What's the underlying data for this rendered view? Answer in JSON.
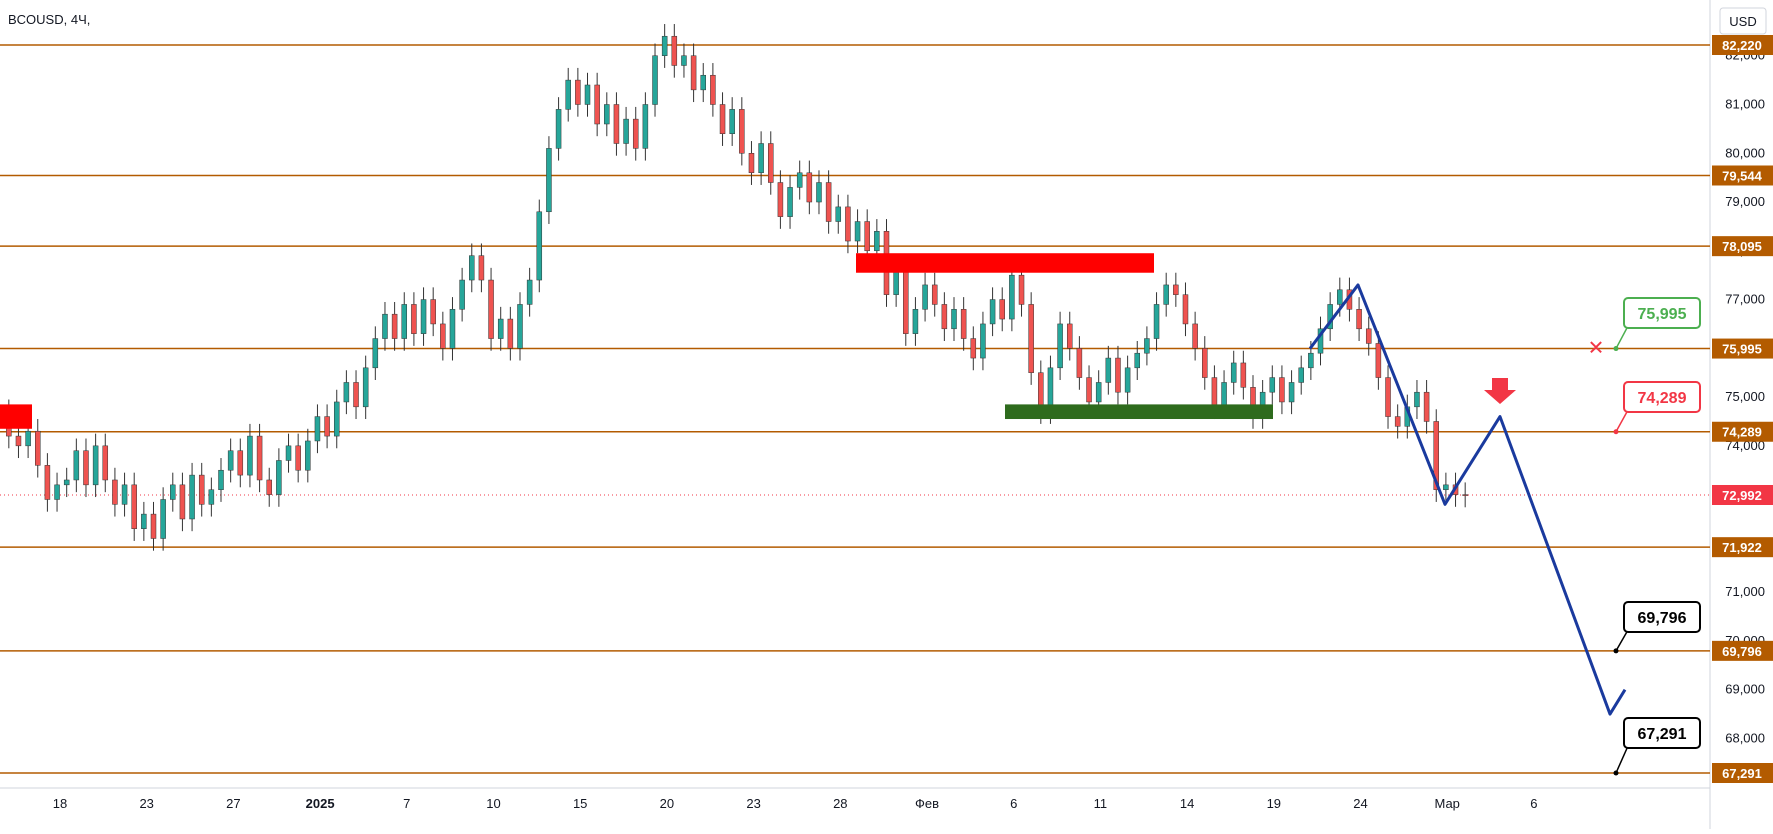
{
  "chart_data": {
    "type": "candlestick",
    "symbol": "BCOUSD",
    "timeframe": "4Ч",
    "currency": "USD",
    "ylim": [
      67000,
      82500
    ],
    "y_ticks": [
      68000,
      69000,
      70000,
      71000,
      72000,
      73000,
      74000,
      75000,
      76000,
      77000,
      78000,
      79000,
      80000,
      81000,
      82000
    ],
    "x_ticks": [
      {
        "label": "18",
        "bold": false
      },
      {
        "label": "23",
        "bold": false
      },
      {
        "label": "27",
        "bold": false
      },
      {
        "label": "2025",
        "bold": true
      },
      {
        "label": "7",
        "bold": false
      },
      {
        "label": "10",
        "bold": false
      },
      {
        "label": "15",
        "bold": false
      },
      {
        "label": "20",
        "bold": false
      },
      {
        "label": "23",
        "bold": false
      },
      {
        "label": "28",
        "bold": false
      },
      {
        "label": "Фев",
        "bold": false
      },
      {
        "label": "6",
        "bold": false
      },
      {
        "label": "11",
        "bold": false
      },
      {
        "label": "14",
        "bold": false
      },
      {
        "label": "19",
        "bold": false
      },
      {
        "label": "24",
        "bold": false
      },
      {
        "label": "Мар",
        "bold": false
      },
      {
        "label": "6",
        "bold": false
      }
    ],
    "levels": [
      {
        "value": 82220,
        "label": "82,220"
      },
      {
        "value": 79544,
        "label": "79,544"
      },
      {
        "value": 78095,
        "label": "78,095"
      },
      {
        "value": 75995,
        "label": "75,995"
      },
      {
        "value": 74289,
        "label": "74,289"
      },
      {
        "value": 71922,
        "label": "71,922"
      },
      {
        "value": 69796,
        "label": "69,796"
      },
      {
        "value": 67291,
        "label": "67,291"
      }
    ],
    "last_price": {
      "value": 72992,
      "label": "72,992"
    },
    "callouts": [
      {
        "label": "75,995",
        "value": 75995,
        "color": "#4caf50",
        "cross": true
      },
      {
        "label": "74,289",
        "value": 74289,
        "color": "#f23645"
      },
      {
        "label": "69,796",
        "value": 69796,
        "color": "#000000"
      },
      {
        "label": "67,291",
        "value": 67291,
        "color": "#000000"
      }
    ],
    "zones": [
      {
        "kind": "resistance",
        "color": "#ff0000",
        "from": 77550,
        "to": 77950
      },
      {
        "kind": "support",
        "color": "#2e6b1d",
        "from": 74550,
        "to": 74850
      },
      {
        "kind": "resistance",
        "color": "#ff0000",
        "from": 74350,
        "to": 74850
      }
    ],
    "forecast_path": [
      {
        "i": 0,
        "v": 75995
      },
      {
        "i": 1,
        "v": 77300
      },
      {
        "i": 2,
        "v": 72800
      },
      {
        "i": 3,
        "v": 74600
      },
      {
        "i": 4,
        "v": 68500
      },
      {
        "i": 5,
        "v": 69000
      }
    ],
    "candles": [
      [
        74.7,
        74.2
      ],
      [
        74.2,
        74.0
      ],
      [
        74.0,
        74.3
      ],
      [
        74.3,
        73.6
      ],
      [
        73.6,
        72.9
      ],
      [
        72.9,
        73.2
      ],
      [
        73.2,
        73.3
      ],
      [
        73.3,
        73.9
      ],
      [
        73.9,
        73.2
      ],
      [
        73.2,
        74.0
      ],
      [
        74.0,
        73.3
      ],
      [
        73.3,
        72.8
      ],
      [
        72.8,
        73.2
      ],
      [
        73.2,
        72.3
      ],
      [
        72.3,
        72.6
      ],
      [
        72.6,
        72.1
      ],
      [
        72.1,
        72.9
      ],
      [
        72.9,
        73.2
      ],
      [
        73.2,
        72.5
      ],
      [
        72.5,
        73.4
      ],
      [
        73.4,
        72.8
      ],
      [
        72.8,
        73.1
      ],
      [
        73.1,
        73.5
      ],
      [
        73.5,
        73.9
      ],
      [
        73.9,
        73.4
      ],
      [
        73.4,
        74.2
      ],
      [
        74.2,
        73.3
      ],
      [
        73.3,
        73.0
      ],
      [
        73.0,
        73.7
      ],
      [
        73.7,
        74.0
      ],
      [
        74.0,
        73.5
      ],
      [
        73.5,
        74.1
      ],
      [
        74.1,
        74.6
      ],
      [
        74.6,
        74.2
      ],
      [
        74.2,
        74.9
      ],
      [
        74.9,
        75.3
      ],
      [
        75.3,
        74.8
      ],
      [
        74.8,
        75.6
      ],
      [
        75.6,
        76.2
      ],
      [
        76.2,
        76.7
      ],
      [
        76.7,
        76.2
      ],
      [
        76.2,
        76.9
      ],
      [
        76.9,
        76.3
      ],
      [
        76.3,
        77.0
      ],
      [
        77.0,
        76.5
      ],
      [
        76.5,
        76.0
      ],
      [
        76.0,
        76.8
      ],
      [
        76.8,
        77.4
      ],
      [
        77.4,
        77.9
      ],
      [
        77.9,
        77.4
      ],
      [
        77.4,
        76.2
      ],
      [
        76.2,
        76.6
      ],
      [
        76.6,
        76.0
      ],
      [
        76.0,
        76.9
      ],
      [
        76.9,
        77.4
      ],
      [
        77.4,
        78.8
      ],
      [
        78.8,
        80.1
      ],
      [
        80.1,
        80.9
      ],
      [
        80.9,
        81.5
      ],
      [
        81.5,
        81.0
      ],
      [
        81.0,
        81.4
      ],
      [
        81.4,
        80.6
      ],
      [
        80.6,
        81.0
      ],
      [
        81.0,
        80.2
      ],
      [
        80.2,
        80.7
      ],
      [
        80.7,
        80.1
      ],
      [
        80.1,
        81.0
      ],
      [
        81.0,
        82.0
      ],
      [
        82.0,
        82.4
      ],
      [
        82.4,
        81.8
      ],
      [
        81.8,
        82.0
      ],
      [
        82.0,
        81.3
      ],
      [
        81.3,
        81.6
      ],
      [
        81.6,
        81.0
      ],
      [
        81.0,
        80.4
      ],
      [
        80.4,
        80.9
      ],
      [
        80.9,
        80.0
      ],
      [
        80.0,
        79.6
      ],
      [
        79.6,
        80.2
      ],
      [
        80.2,
        79.4
      ],
      [
        79.4,
        78.7
      ],
      [
        78.7,
        79.3
      ],
      [
        79.3,
        79.6
      ],
      [
        79.6,
        79.0
      ],
      [
        79.0,
        79.4
      ],
      [
        79.4,
        78.6
      ],
      [
        78.6,
        78.9
      ],
      [
        78.9,
        78.2
      ],
      [
        78.2,
        78.6
      ],
      [
        78.6,
        78.0
      ],
      [
        78.0,
        78.4
      ],
      [
        78.4,
        77.1
      ],
      [
        77.1,
        77.6
      ],
      [
        77.6,
        76.3
      ],
      [
        76.3,
        76.8
      ],
      [
        76.8,
        77.3
      ],
      [
        77.3,
        76.9
      ],
      [
        76.9,
        76.4
      ],
      [
        76.4,
        76.8
      ],
      [
        76.8,
        76.2
      ],
      [
        76.2,
        75.8
      ],
      [
        75.8,
        76.5
      ],
      [
        76.5,
        77.0
      ],
      [
        77.0,
        76.6
      ],
      [
        76.6,
        77.5
      ],
      [
        77.5,
        76.9
      ],
      [
        76.9,
        75.5
      ],
      [
        75.5,
        74.7
      ],
      [
        74.7,
        75.6
      ],
      [
        75.6,
        76.5
      ],
      [
        76.5,
        76.0
      ],
      [
        76.0,
        75.4
      ],
      [
        75.4,
        74.9
      ],
      [
        74.9,
        75.3
      ],
      [
        75.3,
        75.8
      ],
      [
        75.8,
        75.1
      ],
      [
        75.1,
        75.6
      ],
      [
        75.6,
        75.9
      ],
      [
        75.9,
        76.2
      ],
      [
        76.2,
        76.9
      ],
      [
        76.9,
        77.3
      ],
      [
        77.3,
        77.1
      ],
      [
        77.1,
        76.5
      ],
      [
        76.5,
        76.0
      ],
      [
        76.0,
        75.4
      ],
      [
        75.4,
        74.8
      ],
      [
        74.8,
        75.3
      ],
      [
        75.3,
        75.7
      ],
      [
        75.7,
        75.2
      ],
      [
        75.2,
        74.6
      ],
      [
        74.6,
        75.1
      ],
      [
        75.1,
        75.4
      ],
      [
        75.4,
        74.9
      ],
      [
        74.9,
        75.3
      ],
      [
        75.3,
        75.6
      ],
      [
        75.6,
        75.9
      ],
      [
        75.9,
        76.4
      ],
      [
        76.4,
        76.9
      ],
      [
        76.9,
        77.2
      ],
      [
        77.2,
        76.8
      ],
      [
        76.8,
        76.4
      ],
      [
        76.4,
        76.1
      ],
      [
        76.1,
        75.4
      ],
      [
        75.4,
        74.6
      ],
      [
        74.6,
        74.4
      ],
      [
        74.4,
        74.8
      ],
      [
        74.8,
        75.1
      ],
      [
        75.1,
        74.5
      ],
      [
        74.5,
        73.1
      ],
      [
        73.1,
        73.2
      ],
      [
        73.2,
        73.0
      ],
      [
        73.0,
        72.99
      ]
    ]
  }
}
